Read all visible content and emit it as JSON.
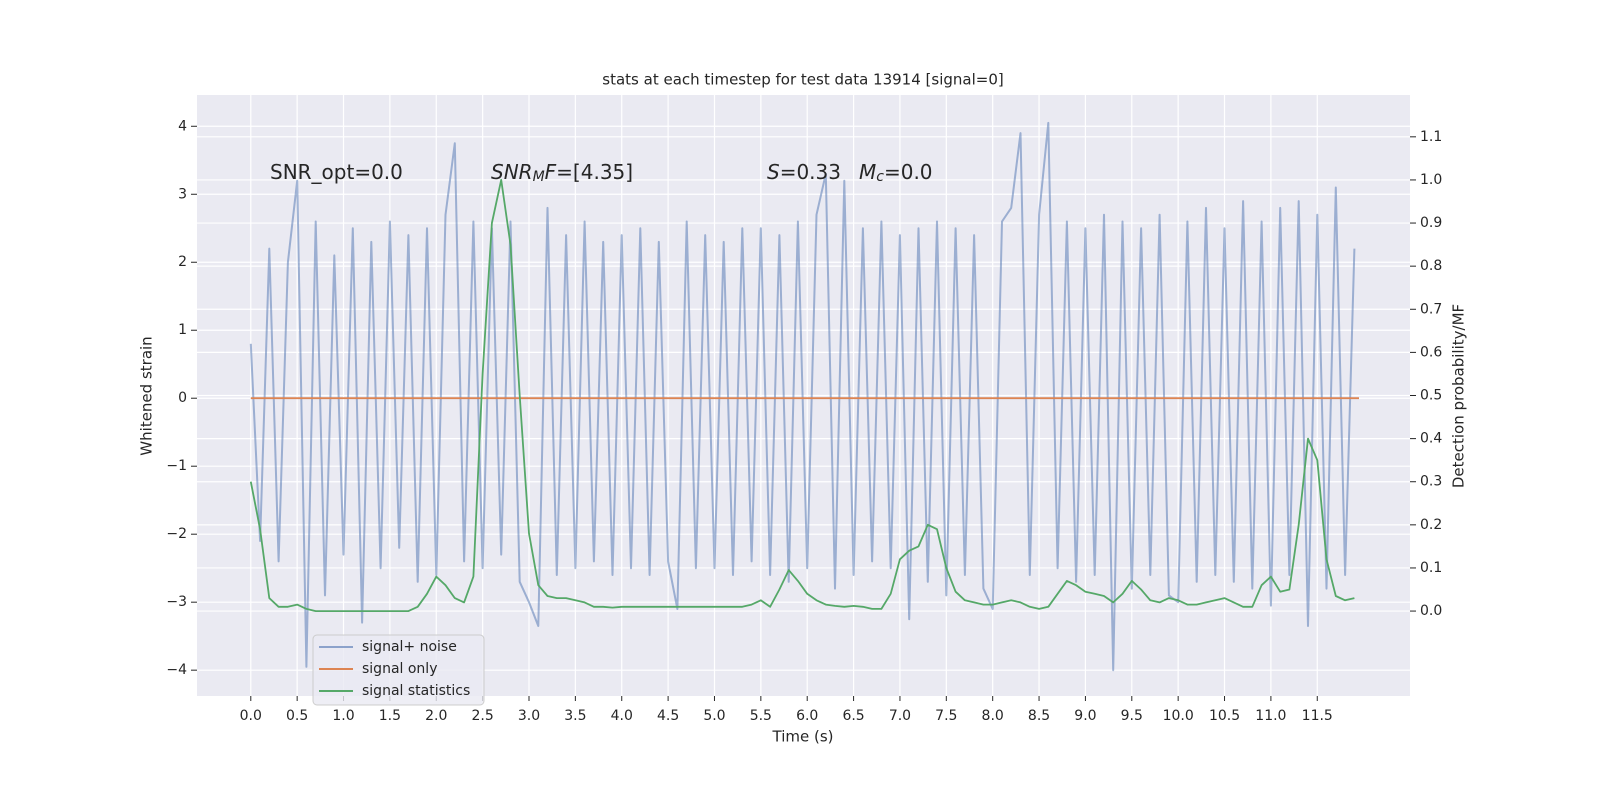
{
  "chart_data": {
    "type": "line",
    "title": "stats at each timestep for test data 13914 [signal=0]",
    "xlabel": "Time (s)",
    "ylabel": "Whitened strain",
    "y2label": "Detection probability/MF",
    "annotations": [
      {
        "parts": [
          {
            "text": "SNR_opt=0.0"
          }
        ]
      },
      {
        "parts": [
          {
            "text": "SNR",
            "italic": true
          },
          {
            "text": "M",
            "italic": true,
            "sub": true
          },
          {
            "text": "F",
            "italic": true
          },
          {
            "text": "=[4.35]"
          }
        ]
      },
      {
        "parts": [
          {
            "text": "S",
            "italic": true
          },
          {
            "text": "=0.33"
          }
        ]
      },
      {
        "parts": [
          {
            "text": "M",
            "italic": true
          },
          {
            "text": "c",
            "italic": true,
            "sub": true
          },
          {
            "text": "=0.0"
          }
        ]
      }
    ],
    "x": [
      0,
      0.1,
      0.2,
      0.3,
      0.4,
      0.5,
      0.6,
      0.7,
      0.8,
      0.9,
      1.0,
      1.1,
      1.2,
      1.3,
      1.4,
      1.5,
      1.6,
      1.7,
      1.8,
      1.9,
      2.0,
      2.1,
      2.2,
      2.3,
      2.4,
      2.5,
      2.6,
      2.7,
      2.8,
      2.9,
      3.0,
      3.1,
      3.2,
      3.3,
      3.4,
      3.5,
      3.6,
      3.7,
      3.8,
      3.9,
      4.0,
      4.1,
      4.2,
      4.3,
      4.4,
      4.5,
      4.6,
      4.7,
      4.8,
      4.9,
      5.0,
      5.1,
      5.2,
      5.3,
      5.4,
      5.5,
      5.6,
      5.7,
      5.8,
      5.9,
      6.0,
      6.1,
      6.2,
      6.3,
      6.4,
      6.5,
      6.6,
      6.7,
      6.8,
      6.9,
      7.0,
      7.1,
      7.2,
      7.3,
      7.4,
      7.5,
      7.6,
      7.7,
      7.8,
      7.9,
      8.0,
      8.1,
      8.2,
      8.3,
      8.4,
      8.5,
      8.6,
      8.7,
      8.8,
      8.9,
      9.0,
      9.1,
      9.2,
      9.3,
      9.4,
      9.5,
      9.6,
      9.7,
      9.8,
      9.9,
      10.0,
      10.1,
      10.2,
      10.3,
      10.4,
      10.5,
      10.6,
      10.7,
      10.8,
      10.9,
      11.0,
      11.1,
      11.2,
      11.3,
      11.4,
      11.5,
      11.6,
      11.7,
      11.8,
      11.9
    ],
    "series": [
      {
        "name": "signal+ noise",
        "color": "#4c72b0",
        "axis": "y",
        "values": [
          0.8,
          -2.1,
          2.2,
          -2.4,
          2.0,
          3.2,
          -3.95,
          2.6,
          -2.9,
          2.1,
          -2.3,
          2.5,
          -3.3,
          2.3,
          -2.5,
          2.6,
          -2.2,
          2.4,
          -2.7,
          2.5,
          -2.6,
          2.7,
          3.75,
          -2.4,
          2.6,
          -2.5,
          2.5,
          -2.3,
          2.6,
          -2.7,
          -3.0,
          -3.35,
          2.8,
          -2.6,
          2.4,
          -2.5,
          2.6,
          -2.4,
          2.3,
          -2.6,
          2.4,
          -2.5,
          2.5,
          -2.6,
          2.3,
          -2.4,
          -3.1,
          2.6,
          -2.5,
          2.4,
          -2.5,
          2.3,
          -2.6,
          2.5,
          -2.4,
          2.5,
          -2.6,
          2.4,
          -2.7,
          2.6,
          -2.5,
          2.7,
          3.3,
          -2.8,
          3.2,
          -2.6,
          2.5,
          -2.4,
          2.6,
          -2.5,
          2.4,
          -3.25,
          2.5,
          -2.7,
          2.6,
          -2.9,
          2.5,
          -2.6,
          2.4,
          -2.8,
          -3.1,
          2.6,
          2.8,
          3.9,
          -2.6,
          2.7,
          4.05,
          -2.5,
          2.6,
          -2.7,
          2.5,
          -2.6,
          2.7,
          -4.0,
          2.6,
          -2.8,
          2.5,
          -2.6,
          2.7,
          -2.9,
          -3.0,
          2.6,
          -2.7,
          2.8,
          -2.6,
          2.5,
          -2.7,
          2.9,
          -2.8,
          2.6,
          -3.05,
          2.8,
          -2.6,
          2.9,
          -3.35,
          2.7,
          -2.8,
          3.1,
          -2.6,
          2.2
        ]
      },
      {
        "name": "signal only",
        "color": "#dd8452",
        "axis": "y",
        "x": [
          0,
          11.95
        ],
        "values": [
          0,
          0
        ]
      },
      {
        "name": "signal statistics",
        "color": "#55a868",
        "axis": "y2",
        "values": [
          0.3,
          0.19,
          0.03,
          0.01,
          0.01,
          0.015,
          0.005,
          0.0,
          0.0,
          0.0,
          0.0,
          0.0,
          0.0,
          0.0,
          0.0,
          0.0,
          0.0,
          0.0,
          0.01,
          0.04,
          0.08,
          0.06,
          0.03,
          0.02,
          0.08,
          0.55,
          0.9,
          1.0,
          0.85,
          0.5,
          0.18,
          0.06,
          0.035,
          0.03,
          0.03,
          0.025,
          0.02,
          0.01,
          0.01,
          0.008,
          0.01,
          0.01,
          0.01,
          0.01,
          0.01,
          0.01,
          0.01,
          0.01,
          0.01,
          0.01,
          0.01,
          0.01,
          0.01,
          0.01,
          0.015,
          0.025,
          0.01,
          0.05,
          0.095,
          0.07,
          0.04,
          0.025,
          0.015,
          0.012,
          0.01,
          0.012,
          0.01,
          0.005,
          0.005,
          0.04,
          0.12,
          0.14,
          0.15,
          0.2,
          0.19,
          0.1,
          0.045,
          0.025,
          0.02,
          0.015,
          0.015,
          0.02,
          0.025,
          0.02,
          0.01,
          0.005,
          0.01,
          0.04,
          0.07,
          0.06,
          0.045,
          0.04,
          0.035,
          0.02,
          0.04,
          0.07,
          0.05,
          0.025,
          0.02,
          0.03,
          0.025,
          0.015,
          0.015,
          0.02,
          0.025,
          0.03,
          0.02,
          0.01,
          0.01,
          0.06,
          0.08,
          0.045,
          0.05,
          0.2,
          0.4,
          0.35,
          0.12,
          0.035,
          0.025,
          0.03
        ]
      }
    ],
    "xlim": [
      -0.58,
      12.5
    ],
    "ylim": [
      -4.38,
      4.46
    ],
    "y2lim": [
      -0.197,
      1.197
    ],
    "xticks": [
      {
        "value": 0,
        "label": "0.0"
      },
      0.5,
      {
        "value": 1,
        "label": "1.0"
      },
      1.5,
      {
        "value": 2,
        "label": "2.0"
      },
      2.5,
      {
        "value": 3,
        "label": "3.0"
      },
      3.5,
      {
        "value": 4,
        "label": "4.0"
      },
      4.5,
      {
        "value": 5,
        "label": "5.0"
      },
      5.5,
      {
        "value": 6,
        "label": "6.0"
      },
      6.5,
      {
        "value": 7,
        "label": "7.0"
      },
      7.5,
      {
        "value": 8,
        "label": "8.0"
      },
      8.5,
      {
        "value": 9,
        "label": "9.0"
      },
      9.5,
      {
        "value": 10,
        "label": "10.0"
      },
      10.5,
      {
        "value": 11,
        "label": "11.0"
      },
      11.5
    ],
    "yticks": [
      {
        "value": -4,
        "label": "−4"
      },
      {
        "value": -3,
        "label": "−3"
      },
      {
        "value": -2,
        "label": "−2"
      },
      {
        "value": -1,
        "label": "−1"
      },
      0,
      1,
      2,
      3,
      4
    ],
    "y2ticks": [
      {
        "value": 0,
        "label": "0.0"
      },
      0.1,
      0.2,
      0.3,
      0.4,
      0.5,
      0.6,
      0.7,
      0.8,
      0.9,
      {
        "value": 1,
        "label": "1.0"
      },
      1.1
    ],
    "grid": true,
    "legend": "lower left"
  }
}
